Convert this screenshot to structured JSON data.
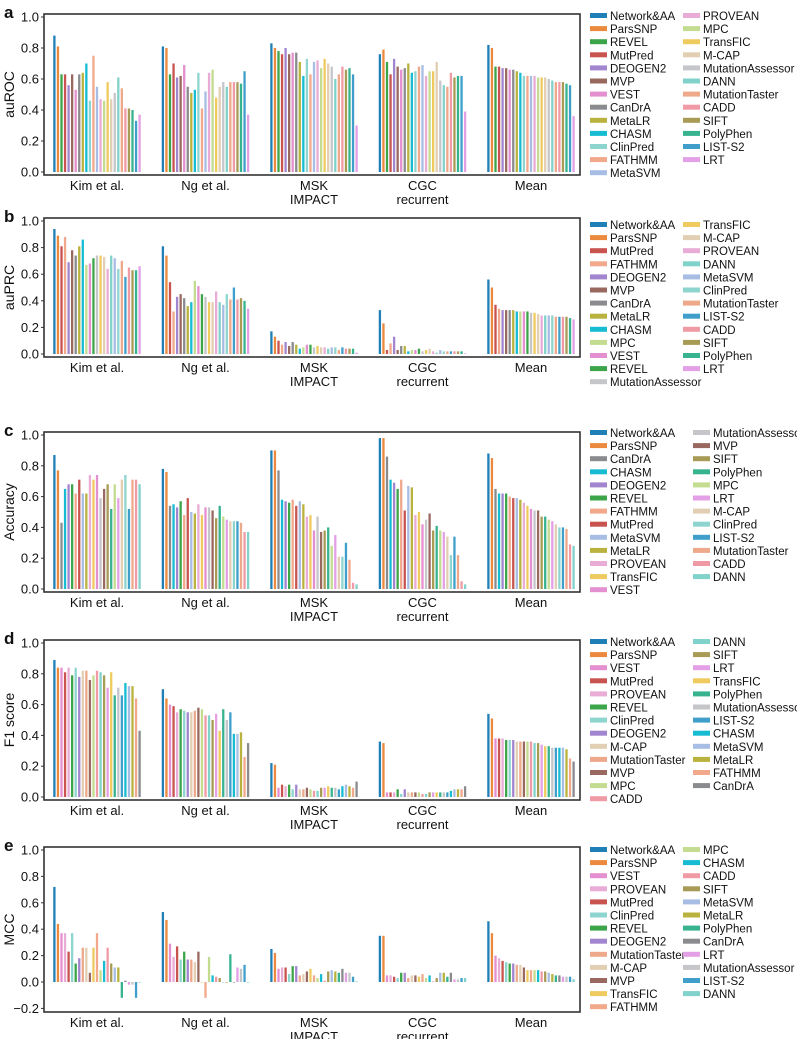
{
  "colors": {
    "Network&AA": "#1f7fb6",
    "ParsSNP": "#eb8a3e",
    "REVEL": "#3ca54a",
    "MutPred": "#c8534f",
    "DEOGEN2": "#a285cf",
    "MVP": "#99695f",
    "VEST": "#e48fcf",
    "CanDrA": "#8a8b8f",
    "MetaLR": "#b9b23e",
    "CHASM": "#17bcd3",
    "ClinPred": "#8ed4cf",
    "FATHMM": "#f2a88a",
    "MetaSVM": "#a8bde4",
    "PROVEAN": "#e9acd6",
    "MPC": "#c3dc8f",
    "TransFIC": "#efcb5f",
    "M-CAP": "#e2cfb3",
    "MutationAssessor": "#c4c6ca",
    "DANN": "#80d2ca",
    "MutationTaster": "#eea88a",
    "CADD": "#f09aa5",
    "SIFT": "#a89b56",
    "PolyPhen": "#37b38f",
    "LIST-S2": "#3f9fca",
    "LRT": "#e4a0e6"
  },
  "chart_data": [
    {
      "type": "bar",
      "panel": "a",
      "ylabel": "auROC",
      "ylim": [
        0,
        1.0
      ],
      "yticks": [
        "0.0",
        "0.2",
        "0.4",
        "0.6",
        "0.8",
        "1.0"
      ],
      "categories": [
        [
          "Kim et al."
        ],
        [
          "Ng et al."
        ],
        [
          "MSK",
          "IMPACT"
        ],
        [
          "CGC",
          "recurrent"
        ],
        [
          "Mean"
        ]
      ],
      "series": [
        "Network&AA",
        "ParsSNP",
        "REVEL",
        "MutPred",
        "DEOGEN2",
        "MVP",
        "VEST",
        "CanDrA",
        "MetaLR",
        "CHASM",
        "ClinPred",
        "FATHMM",
        "MetaSVM",
        "PROVEAN",
        "MPC",
        "TransFIC",
        "M-CAP",
        "MutationAssessor",
        "DANN",
        "MutationTaster",
        "CADD",
        "SIFT",
        "PolyPhen",
        "LIST-S2",
        "LRT"
      ],
      "values": [
        [
          0.88,
          0.81,
          0.63,
          0.63,
          0.56,
          0.63,
          0.53,
          0.63,
          0.64,
          0.7,
          0.46,
          0.75,
          0.55,
          0.47,
          0.46,
          0.58,
          0.47,
          0.51,
          0.61,
          0.54,
          0.41,
          0.41,
          0.4,
          0.33,
          0.37
        ],
        [
          0.81,
          0.8,
          0.63,
          0.7,
          0.61,
          0.62,
          0.69,
          0.55,
          0.51,
          0.53,
          0.64,
          0.41,
          0.52,
          0.64,
          0.66,
          0.48,
          0.55,
          0.58,
          0.55,
          0.58,
          0.58,
          0.58,
          0.57,
          0.65,
          0.37
        ],
        [
          0.83,
          0.8,
          0.78,
          0.76,
          0.8,
          0.76,
          0.77,
          0.77,
          0.71,
          0.62,
          0.73,
          0.63,
          0.71,
          0.72,
          0.67,
          0.73,
          0.7,
          0.68,
          0.6,
          0.63,
          0.68,
          0.66,
          0.67,
          0.63,
          0.3
        ],
        [
          0.76,
          0.79,
          0.71,
          0.63,
          0.73,
          0.68,
          0.66,
          0.67,
          0.7,
          0.64,
          0.65,
          0.68,
          0.69,
          0.62,
          0.65,
          0.65,
          0.71,
          0.59,
          0.56,
          0.55,
          0.64,
          0.61,
          0.62,
          0.62,
          0.39
        ],
        [
          0.82,
          0.8,
          0.68,
          0.68,
          0.67,
          0.67,
          0.66,
          0.66,
          0.65,
          0.64,
          0.62,
          0.62,
          0.62,
          0.62,
          0.61,
          0.61,
          0.61,
          0.6,
          0.59,
          0.58,
          0.58,
          0.58,
          0.57,
          0.56,
          0.36
        ]
      ]
    },
    {
      "type": "bar",
      "panel": "b",
      "ylabel": "auPRC",
      "ylim": [
        0,
        1.0
      ],
      "yticks": [
        "0.0",
        "0.2",
        "0.4",
        "0.6",
        "0.8",
        "1.0"
      ],
      "categories": [
        [
          "Kim et al."
        ],
        [
          "Ng et al."
        ],
        [
          "MSK",
          "IMPACT"
        ],
        [
          "CGC",
          "recurrent"
        ],
        [
          "Mean"
        ]
      ],
      "series": [
        "Network&AA",
        "ParsSNP",
        "MutPred",
        "FATHMM",
        "DEOGEN2",
        "MVP",
        "CanDrA",
        "MetaLR",
        "CHASM",
        "MPC",
        "VEST",
        "REVEL",
        "MutationAssessor",
        "TransFIC",
        "M-CAP",
        "PROVEAN",
        "DANN",
        "MetaSVM",
        "ClinPred",
        "MutationTaster",
        "LIST-S2",
        "CADD",
        "SIFT",
        "PolyPhen",
        "LRT"
      ],
      "values": [
        [
          0.94,
          0.89,
          0.81,
          0.88,
          0.69,
          0.78,
          0.74,
          0.81,
          0.86,
          0.67,
          0.68,
          0.72,
          0.74,
          0.74,
          0.73,
          0.64,
          0.74,
          0.72,
          0.64,
          0.7,
          0.58,
          0.65,
          0.63,
          0.63,
          0.66
        ],
        [
          0.81,
          0.74,
          0.54,
          0.32,
          0.43,
          0.45,
          0.42,
          0.36,
          0.39,
          0.55,
          0.51,
          0.45,
          0.43,
          0.39,
          0.39,
          0.47,
          0.39,
          0.37,
          0.45,
          0.41,
          0.5,
          0.41,
          0.42,
          0.4,
          0.34
        ],
        [
          0.17,
          0.13,
          0.1,
          0.07,
          0.09,
          0.06,
          0.09,
          0.07,
          0.04,
          0.05,
          0.07,
          0.07,
          0.05,
          0.06,
          0.05,
          0.05,
          0.04,
          0.05,
          0.05,
          0.03,
          0.05,
          0.04,
          0.04,
          0.04,
          0.01
        ],
        [
          0.33,
          0.23,
          0.03,
          0.08,
          0.13,
          0.03,
          0.06,
          0.06,
          0.02,
          0.03,
          0.03,
          0.04,
          0.02,
          0.03,
          0.04,
          0.02,
          0.01,
          0.03,
          0.02,
          0.02,
          0.02,
          0.02,
          0.02,
          0.02,
          0.005
        ],
        [
          0.56,
          0.5,
          0.37,
          0.34,
          0.33,
          0.33,
          0.33,
          0.33,
          0.32,
          0.32,
          0.32,
          0.32,
          0.31,
          0.31,
          0.3,
          0.29,
          0.29,
          0.29,
          0.29,
          0.28,
          0.28,
          0.28,
          0.28,
          0.27,
          0.26
        ]
      ]
    },
    {
      "type": "bar",
      "panel": "c",
      "ylabel": "Accuracy",
      "ylim": [
        0,
        1.0
      ],
      "yticks": [
        "0.0",
        "0.2",
        "0.4",
        "0.6",
        "0.8",
        "1.0"
      ],
      "categories": [
        [
          "Kim et al."
        ],
        [
          "Ng et al."
        ],
        [
          "MSK",
          "IMPACT"
        ],
        [
          "CGC",
          "recurrent"
        ],
        [
          "Mean"
        ]
      ],
      "series": [
        "Network&AA",
        "ParsSNP",
        "CanDrA",
        "CHASM",
        "DEOGEN2",
        "REVEL",
        "FATHMM",
        "MutPred",
        "MetaSVM",
        "MetaLR",
        "PROVEAN",
        "TransFIC",
        "VEST",
        "MutationAssessor",
        "MVP",
        "SIFT",
        "PolyPhen",
        "MPC",
        "LRT",
        "M-CAP",
        "ClinPred",
        "LIST-S2",
        "MutationTaster",
        "CADD",
        "DANN"
      ],
      "values": [
        [
          0.87,
          0.77,
          0.43,
          0.65,
          0.68,
          0.68,
          0.62,
          0.71,
          0.62,
          0.62,
          0.74,
          0.71,
          0.74,
          0.59,
          0.65,
          0.68,
          0.52,
          0.68,
          0.59,
          0.71,
          0.74,
          0.52,
          0.71,
          0.71,
          0.68
        ],
        [
          0.78,
          0.76,
          0.54,
          0.55,
          0.53,
          0.57,
          0.48,
          0.59,
          0.5,
          0.49,
          0.55,
          0.48,
          0.53,
          0.53,
          0.51,
          0.46,
          0.54,
          0.47,
          0.45,
          0.44,
          0.44,
          0.44,
          0.43,
          0.37,
          0.37
        ],
        [
          0.9,
          0.9,
          0.77,
          0.58,
          0.57,
          0.56,
          0.58,
          0.54,
          0.57,
          0.55,
          0.47,
          0.48,
          0.38,
          0.47,
          0.37,
          0.38,
          0.4,
          0.28,
          0.35,
          0.21,
          0.21,
          0.3,
          0.19,
          0.04,
          0.03
        ],
        [
          0.98,
          0.98,
          0.86,
          0.71,
          0.69,
          0.65,
          0.71,
          0.51,
          0.67,
          0.66,
          0.48,
          0.5,
          0.42,
          0.45,
          0.49,
          0.38,
          0.41,
          0.38,
          0.37,
          0.34,
          0.22,
          0.34,
          0.22,
          0.05,
          0.03
        ],
        [
          0.88,
          0.85,
          0.65,
          0.62,
          0.62,
          0.62,
          0.6,
          0.59,
          0.59,
          0.58,
          0.56,
          0.54,
          0.52,
          0.51,
          0.51,
          0.47,
          0.47,
          0.45,
          0.44,
          0.42,
          0.4,
          0.4,
          0.39,
          0.29,
          0.28
        ]
      ]
    },
    {
      "type": "bar",
      "panel": "d",
      "ylabel": "F1 score",
      "ylim": [
        0,
        1.0
      ],
      "yticks": [
        "0.0",
        "0.2",
        "0.4",
        "0.6",
        "0.8",
        "1.0"
      ],
      "categories": [
        [
          "Kim et al."
        ],
        [
          "Ng et al."
        ],
        [
          "MSK",
          "IMPACT"
        ],
        [
          "CGC",
          "recurrent"
        ],
        [
          "Mean"
        ]
      ],
      "series": [
        "Network&AA",
        "ParsSNP",
        "VEST",
        "MutPred",
        "PROVEAN",
        "REVEL",
        "ClinPred",
        "DEOGEN2",
        "M-CAP",
        "MutationTaster",
        "MVP",
        "MPC",
        "CADD",
        "DANN",
        "SIFT",
        "LRT",
        "TransFIC",
        "PolyPhen",
        "MutationAssessor",
        "LIST-S2",
        "CHASM",
        "MetaSVM",
        "MetaLR",
        "FATHMM",
        "CanDrA"
      ],
      "values": [
        [
          0.89,
          0.84,
          0.84,
          0.81,
          0.84,
          0.79,
          0.84,
          0.78,
          0.82,
          0.82,
          0.76,
          0.79,
          0.82,
          0.81,
          0.79,
          0.71,
          0.81,
          0.66,
          0.71,
          0.66,
          0.74,
          0.72,
          0.72,
          0.64,
          0.43
        ],
        [
          0.7,
          0.64,
          0.6,
          0.59,
          0.55,
          0.57,
          0.56,
          0.55,
          0.55,
          0.56,
          0.58,
          0.57,
          0.53,
          0.53,
          0.5,
          0.54,
          0.43,
          0.57,
          0.5,
          0.55,
          0.41,
          0.41,
          0.42,
          0.26,
          0.35
        ],
        [
          0.22,
          0.21,
          0.06,
          0.08,
          0.07,
          0.08,
          0.05,
          0.08,
          0.05,
          0.05,
          0.06,
          0.05,
          0.04,
          0.04,
          0.06,
          0.06,
          0.07,
          0.06,
          0.06,
          0.05,
          0.07,
          0.08,
          0.07,
          0.06,
          0.1
        ],
        [
          0.36,
          0.35,
          0.03,
          0.03,
          0.03,
          0.05,
          0.02,
          0.05,
          0.03,
          0.03,
          0.03,
          0.03,
          0.02,
          0.02,
          0.03,
          0.03,
          0.03,
          0.03,
          0.03,
          0.03,
          0.04,
          0.05,
          0.05,
          0.05,
          0.07
        ],
        [
          0.54,
          0.51,
          0.38,
          0.38,
          0.38,
          0.37,
          0.37,
          0.37,
          0.36,
          0.36,
          0.36,
          0.36,
          0.36,
          0.35,
          0.35,
          0.34,
          0.33,
          0.33,
          0.32,
          0.32,
          0.32,
          0.32,
          0.31,
          0.25,
          0.23
        ]
      ]
    },
    {
      "type": "bar",
      "panel": "e",
      "ylabel": "MCC",
      "ylim": [
        -0.2,
        1.0
      ],
      "yticks": [
        "−0.2",
        "0.0",
        "0.2",
        "0.4",
        "0.6",
        "0.8",
        "1.0"
      ],
      "categories": [
        [
          "Kim et al."
        ],
        [
          "Ng et al."
        ],
        [
          "MSK",
          "IMPACT"
        ],
        [
          "CGC",
          "recurrent"
        ],
        [
          "Mean"
        ]
      ],
      "series": [
        "Network&AA",
        "ParsSNP",
        "VEST",
        "PROVEAN",
        "MutPred",
        "ClinPred",
        "REVEL",
        "DEOGEN2",
        "MutationTaster",
        "M-CAP",
        "MVP",
        "TransFIC",
        "FATHMM",
        "MPC",
        "CHASM",
        "CADD",
        "SIFT",
        "MetaSVM",
        "MetaLR",
        "PolyPhen",
        "CanDrA",
        "LRT",
        "MutationAssessor",
        "LIST-S2",
        "DANN"
      ],
      "values": [
        [
          0.72,
          0.44,
          0.37,
          0.37,
          0.23,
          0.37,
          0.14,
          0.18,
          0.26,
          0.26,
          0.07,
          0.26,
          0.37,
          0.09,
          0.16,
          0.26,
          0.14,
          0.11,
          0.11,
          -0.12,
          0.01,
          -0.02,
          -0.02,
          -0.12,
          0
        ],
        [
          0.53,
          0.47,
          0.29,
          0.19,
          0.27,
          0.17,
          0.23,
          0.17,
          0.17,
          0.15,
          0.23,
          0,
          -0.12,
          0.19,
          0.05,
          0.04,
          0.03,
          0,
          0,
          0.21,
          0,
          0.11,
          0.1,
          0.13,
          0
        ],
        [
          0.25,
          0.22,
          0.1,
          0.11,
          0.11,
          0.06,
          0.12,
          0.12,
          0.05,
          0.06,
          0.08,
          0.1,
          0.05,
          0.03,
          0.06,
          0.01,
          0.08,
          0.09,
          0.08,
          0.07,
          0.1,
          0.07,
          0.07,
          0.04,
          0.005
        ],
        [
          0.35,
          0.35,
          0.05,
          0.05,
          0.04,
          0.03,
          0.07,
          0.07,
          0.03,
          0.05,
          0.05,
          0.04,
          0.06,
          0.03,
          0.05,
          0.005,
          0.03,
          0.07,
          0.07,
          0.04,
          0.07,
          0.02,
          0.02,
          0.03,
          0.03
        ],
        [
          0.46,
          0.37,
          0.2,
          0.18,
          0.16,
          0.15,
          0.14,
          0.14,
          0.13,
          0.13,
          0.11,
          0.09,
          0.09,
          0.09,
          0.09,
          0.08,
          0.08,
          0.07,
          0.06,
          0.05,
          0.05,
          0.04,
          0.04,
          0.04,
          0.02
        ]
      ]
    }
  ]
}
